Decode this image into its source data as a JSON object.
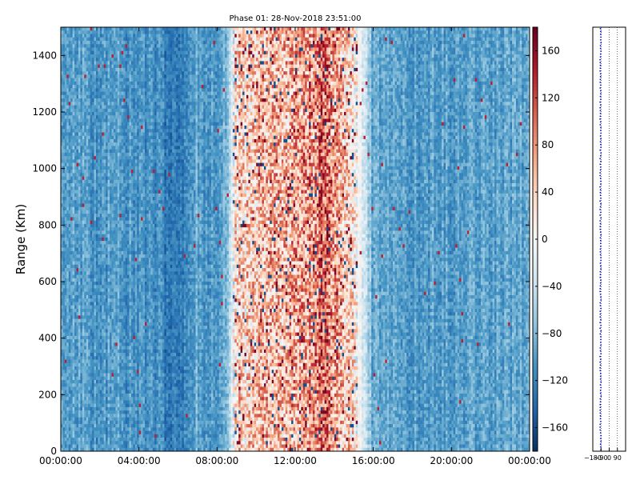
{
  "chart_data": [
    {
      "type": "heatmap",
      "title": "Phase 01: 28-Nov-2018 23:51:00",
      "xlabel": "",
      "ylabel": "Range (Km)",
      "xlim": [
        "00:00:00",
        "24:00:00"
      ],
      "ylim": [
        0,
        1500
      ],
      "x_tick_labels": [
        "00:00:00",
        "04:00:00",
        "08:00:00",
        "12:00:00",
        "16:00:00",
        "20:00:00",
        "00:00:00"
      ],
      "y_tick_labels": [
        "0",
        "200",
        "400",
        "600",
        "800",
        "1000",
        "1200",
        "1400"
      ],
      "y_ticks": [
        0,
        200,
        400,
        600,
        800,
        1000,
        1200,
        1400
      ],
      "colorbar": {
        "range": [
          -180,
          180
        ],
        "tick_values": [
          -160,
          -120,
          -80,
          -40,
          0,
          40,
          80,
          120,
          160
        ],
        "tick_labels": [
          "−160",
          "−120",
          "−80",
          "−40",
          "0",
          "40",
          "80",
          "120",
          "160"
        ],
        "colormap": "RdBu_r"
      },
      "grid": false,
      "time_profile_hours": [
        0,
        1,
        2,
        3,
        4,
        5,
        5.5,
        6,
        7,
        7.5,
        8,
        8.5,
        9,
        9.5,
        10,
        11,
        12,
        13,
        13.5,
        14,
        15,
        16,
        17,
        18,
        19,
        20,
        21,
        22,
        23,
        24
      ],
      "time_profile_phase_deg": [
        -100,
        -100,
        -105,
        -100,
        -110,
        -115,
        -125,
        -125,
        -90,
        -115,
        -100,
        -85,
        40,
        30,
        50,
        50,
        60,
        85,
        110,
        75,
        20,
        -95,
        -95,
        -100,
        -100,
        -100,
        -95,
        -95,
        -95,
        -95
      ]
    },
    {
      "type": "scatter",
      "title": "",
      "xlabel": "",
      "ylabel": "",
      "xlim": [
        -180,
        180
      ],
      "ylim": [
        0,
        1500
      ],
      "x_tick_labels": [
        "−180",
        "−90",
        "0",
        "90"
      ],
      "x_ticks": [
        -180,
        -90,
        0,
        90
      ],
      "series_color": "#0000cc",
      "mean_phase_deg": -95,
      "spread_deg": 5
    }
  ]
}
